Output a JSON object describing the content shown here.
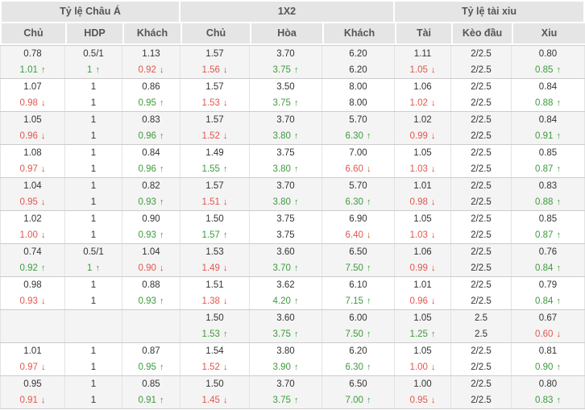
{
  "table": {
    "sections": [
      {
        "label": "Tỷ lệ Châu Á"
      },
      {
        "label": "1X2"
      },
      {
        "label": "Tỷ lệ tài xiu"
      }
    ],
    "columns": [
      "Chủ",
      "HDP",
      "Khách",
      "Chủ",
      "Hòa",
      "Khách",
      "Tài",
      "Kèo đầu",
      "Xiu"
    ],
    "groups": [
      {
        "shaded": true,
        "rows": [
          [
            {
              "v": "0.78"
            },
            {
              "v": "0.5/1"
            },
            {
              "v": "1.13"
            },
            {
              "v": "1.57"
            },
            {
              "v": "3.70"
            },
            {
              "v": "6.20"
            },
            {
              "v": "1.11"
            },
            {
              "v": "2/2.5"
            },
            {
              "v": "0.80"
            }
          ],
          [
            {
              "v": "1.01",
              "t": "up"
            },
            {
              "v": "1",
              "t": "up"
            },
            {
              "v": "0.92",
              "t": "down"
            },
            {
              "v": "1.56",
              "t": "down"
            },
            {
              "v": "3.75",
              "t": "up"
            },
            {
              "v": "6.20"
            },
            {
              "v": "1.05",
              "t": "down"
            },
            {
              "v": "2/2.5"
            },
            {
              "v": "0.85",
              "t": "up"
            }
          ]
        ]
      },
      {
        "shaded": false,
        "rows": [
          [
            {
              "v": "1.07"
            },
            {
              "v": "1"
            },
            {
              "v": "0.86"
            },
            {
              "v": "1.57"
            },
            {
              "v": "3.50"
            },
            {
              "v": "8.00"
            },
            {
              "v": "1.06"
            },
            {
              "v": "2/2.5"
            },
            {
              "v": "0.84"
            }
          ],
          [
            {
              "v": "0.98",
              "t": "down"
            },
            {
              "v": "1"
            },
            {
              "v": "0.95",
              "t": "up"
            },
            {
              "v": "1.53",
              "t": "down"
            },
            {
              "v": "3.75",
              "t": "up"
            },
            {
              "v": "8.00"
            },
            {
              "v": "1.02",
              "t": "down"
            },
            {
              "v": "2/2.5"
            },
            {
              "v": "0.88",
              "t": "up"
            }
          ]
        ]
      },
      {
        "shaded": true,
        "rows": [
          [
            {
              "v": "1.05"
            },
            {
              "v": "1"
            },
            {
              "v": "0.83"
            },
            {
              "v": "1.57"
            },
            {
              "v": "3.70"
            },
            {
              "v": "5.70"
            },
            {
              "v": "1.02"
            },
            {
              "v": "2/2.5"
            },
            {
              "v": "0.84"
            }
          ],
          [
            {
              "v": "0.96",
              "t": "down"
            },
            {
              "v": "1"
            },
            {
              "v": "0.96",
              "t": "up"
            },
            {
              "v": "1.52",
              "t": "down"
            },
            {
              "v": "3.80",
              "t": "up"
            },
            {
              "v": "6.30",
              "t": "up"
            },
            {
              "v": "0.99",
              "t": "down"
            },
            {
              "v": "2/2.5"
            },
            {
              "v": "0.91",
              "t": "up"
            }
          ]
        ]
      },
      {
        "shaded": false,
        "rows": [
          [
            {
              "v": "1.08"
            },
            {
              "v": "1"
            },
            {
              "v": "0.84"
            },
            {
              "v": "1.49"
            },
            {
              "v": "3.75"
            },
            {
              "v": "7.00"
            },
            {
              "v": "1.05"
            },
            {
              "v": "2/2.5"
            },
            {
              "v": "0.85"
            }
          ],
          [
            {
              "v": "0.97",
              "t": "down"
            },
            {
              "v": "1"
            },
            {
              "v": "0.96",
              "t": "up"
            },
            {
              "v": "1.55",
              "t": "up"
            },
            {
              "v": "3.80",
              "t": "up"
            },
            {
              "v": "6.60",
              "t": "down"
            },
            {
              "v": "1.03",
              "t": "down"
            },
            {
              "v": "2/2.5"
            },
            {
              "v": "0.87",
              "t": "up"
            }
          ]
        ]
      },
      {
        "shaded": true,
        "rows": [
          [
            {
              "v": "1.04"
            },
            {
              "v": "1"
            },
            {
              "v": "0.82"
            },
            {
              "v": "1.57"
            },
            {
              "v": "3.70"
            },
            {
              "v": "5.70"
            },
            {
              "v": "1.01"
            },
            {
              "v": "2/2.5"
            },
            {
              "v": "0.83"
            }
          ],
          [
            {
              "v": "0.95",
              "t": "down"
            },
            {
              "v": "1"
            },
            {
              "v": "0.93",
              "t": "up"
            },
            {
              "v": "1.51",
              "t": "down"
            },
            {
              "v": "3.80",
              "t": "up"
            },
            {
              "v": "6.30",
              "t": "up"
            },
            {
              "v": "0.98",
              "t": "down"
            },
            {
              "v": "2/2.5"
            },
            {
              "v": "0.88",
              "t": "up"
            }
          ]
        ]
      },
      {
        "shaded": false,
        "rows": [
          [
            {
              "v": "1.02"
            },
            {
              "v": "1"
            },
            {
              "v": "0.90"
            },
            {
              "v": "1.50"
            },
            {
              "v": "3.75"
            },
            {
              "v": "6.90"
            },
            {
              "v": "1.05"
            },
            {
              "v": "2/2.5"
            },
            {
              "v": "0.85"
            }
          ],
          [
            {
              "v": "1.00",
              "t": "down"
            },
            {
              "v": "1"
            },
            {
              "v": "0.93",
              "t": "up"
            },
            {
              "v": "1.57",
              "t": "up"
            },
            {
              "v": "3.75"
            },
            {
              "v": "6.40",
              "t": "down"
            },
            {
              "v": "1.03",
              "t": "down"
            },
            {
              "v": "2/2.5"
            },
            {
              "v": "0.87",
              "t": "up"
            }
          ]
        ]
      },
      {
        "shaded": true,
        "rows": [
          [
            {
              "v": "0.74"
            },
            {
              "v": "0.5/1"
            },
            {
              "v": "1.04"
            },
            {
              "v": "1.53"
            },
            {
              "v": "3.60"
            },
            {
              "v": "6.50"
            },
            {
              "v": "1.06"
            },
            {
              "v": "2/2.5"
            },
            {
              "v": "0.76"
            }
          ],
          [
            {
              "v": "0.92",
              "t": "up"
            },
            {
              "v": "1",
              "t": "up"
            },
            {
              "v": "0.90",
              "t": "down"
            },
            {
              "v": "1.49",
              "t": "down"
            },
            {
              "v": "3.70",
              "t": "up"
            },
            {
              "v": "7.50",
              "t": "up"
            },
            {
              "v": "0.99",
              "t": "down"
            },
            {
              "v": "2/2.5"
            },
            {
              "v": "0.84",
              "t": "up"
            }
          ]
        ]
      },
      {
        "shaded": false,
        "rows": [
          [
            {
              "v": "0.98"
            },
            {
              "v": "1"
            },
            {
              "v": "0.88"
            },
            {
              "v": "1.51"
            },
            {
              "v": "3.62"
            },
            {
              "v": "6.10"
            },
            {
              "v": "1.01"
            },
            {
              "v": "2/2.5"
            },
            {
              "v": "0.79"
            }
          ],
          [
            {
              "v": "0.93",
              "t": "down"
            },
            {
              "v": "1"
            },
            {
              "v": "0.93",
              "t": "up"
            },
            {
              "v": "1.38",
              "t": "down"
            },
            {
              "v": "4.20",
              "t": "up"
            },
            {
              "v": "7.15",
              "t": "up"
            },
            {
              "v": "0.96",
              "t": "down"
            },
            {
              "v": "2/2.5"
            },
            {
              "v": "0.84",
              "t": "up"
            }
          ]
        ]
      },
      {
        "shaded": true,
        "rows": [
          [
            {
              "v": ""
            },
            {
              "v": ""
            },
            {
              "v": ""
            },
            {
              "v": "1.50"
            },
            {
              "v": "3.60"
            },
            {
              "v": "6.00"
            },
            {
              "v": "1.05"
            },
            {
              "v": "2.5"
            },
            {
              "v": "0.67"
            }
          ],
          [
            {
              "v": ""
            },
            {
              "v": ""
            },
            {
              "v": ""
            },
            {
              "v": "1.53",
              "t": "up"
            },
            {
              "v": "3.75",
              "t": "up"
            },
            {
              "v": "7.50",
              "t": "up"
            },
            {
              "v": "1.25",
              "t": "up"
            },
            {
              "v": "2.5"
            },
            {
              "v": "0.60",
              "t": "down"
            }
          ]
        ]
      },
      {
        "shaded": false,
        "rows": [
          [
            {
              "v": "1.01"
            },
            {
              "v": "1"
            },
            {
              "v": "0.87"
            },
            {
              "v": "1.54"
            },
            {
              "v": "3.80"
            },
            {
              "v": "6.20"
            },
            {
              "v": "1.05"
            },
            {
              "v": "2/2.5"
            },
            {
              "v": "0.81"
            }
          ],
          [
            {
              "v": "0.97",
              "t": "down"
            },
            {
              "v": "1"
            },
            {
              "v": "0.95",
              "t": "up"
            },
            {
              "v": "1.52",
              "t": "down"
            },
            {
              "v": "3.90",
              "t": "up"
            },
            {
              "v": "6.30",
              "t": "up"
            },
            {
              "v": "1.00",
              "t": "down"
            },
            {
              "v": "2/2.5"
            },
            {
              "v": "0.90",
              "t": "up"
            }
          ]
        ]
      },
      {
        "shaded": true,
        "rows": [
          [
            {
              "v": "0.95"
            },
            {
              "v": "1"
            },
            {
              "v": "0.85"
            },
            {
              "v": "1.50"
            },
            {
              "v": "3.70"
            },
            {
              "v": "6.50"
            },
            {
              "v": "1.00"
            },
            {
              "v": "2/2.5"
            },
            {
              "v": "0.80"
            }
          ],
          [
            {
              "v": "0.91",
              "t": "down"
            },
            {
              "v": "1"
            },
            {
              "v": "0.91",
              "t": "up"
            },
            {
              "v": "1.45",
              "t": "down"
            },
            {
              "v": "3.75",
              "t": "up"
            },
            {
              "v": "7.00",
              "t": "up"
            },
            {
              "v": "0.95",
              "t": "down"
            },
            {
              "v": "2/2.5"
            },
            {
              "v": "0.83",
              "t": "up"
            }
          ]
        ]
      }
    ]
  },
  "icons": {
    "up_arrow": "↑",
    "down_arrow": "↓"
  },
  "colors": {
    "header_bg": "#e5e5e5",
    "header_text": "#555555",
    "text": "#333333",
    "value_up": "#3d9b3d",
    "value_down": "#e2574e",
    "arrow_down": "#cc4e22",
    "row_alt_bg": "#f4f4f4",
    "grid_line": "#e3e3e3",
    "group_border": "#cccccc"
  }
}
